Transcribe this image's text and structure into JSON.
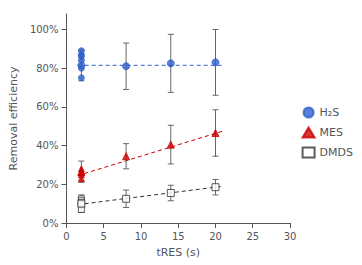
{
  "chart_data": {
    "type": "scatter",
    "xlabel": "tRES (s)",
    "ylabel": "Removal efficiency",
    "xlim": [
      0,
      30
    ],
    "xticks": [
      0,
      5,
      10,
      15,
      20,
      25,
      30
    ],
    "ylim": [
      0,
      1.08
    ],
    "yticks": [
      {
        "value": 0,
        "label": "0%"
      },
      {
        "value": 0.2,
        "label": "20%"
      },
      {
        "value": 0.4,
        "label": "40%"
      },
      {
        "value": 0.6,
        "label": "60%"
      },
      {
        "value": 0.8,
        "label": "80%"
      },
      {
        "value": 1.0,
        "label": "100%"
      }
    ],
    "grid": false,
    "legend": "right",
    "series": [
      {
        "name": "H₂S",
        "color": "#3060cc",
        "marker": "circle",
        "line_style": "dashed",
        "x": [
          2,
          8,
          14,
          20
        ],
        "values": [
          0.815,
          0.81,
          0.825,
          0.83
        ],
        "yerr": [
          0.08,
          0.12,
          0.15,
          0.17
        ],
        "scatter_x": [
          2,
          2,
          2,
          2,
          2,
          2
        ],
        "scatter_values": [
          0.89,
          0.87,
          0.86,
          0.84,
          0.8,
          0.75
        ],
        "trend_x": [
          1.5,
          21
        ],
        "trend_values": [
          0.815,
          0.815
        ]
      },
      {
        "name": "MES",
        "color": "#cc0000",
        "marker": "triangle",
        "line_style": "dashed",
        "x": [
          2,
          8,
          14,
          20
        ],
        "values": [
          0.265,
          0.345,
          0.405,
          0.465
        ],
        "yerr": [
          0.055,
          0.065,
          0.1,
          0.12
        ],
        "scatter_x": [
          2,
          2,
          2,
          2
        ],
        "scatter_values": [
          0.28,
          0.26,
          0.25,
          0.23
        ],
        "trend_x": [
          1.5,
          21
        ],
        "trend_values": [
          0.245,
          0.475
        ]
      },
      {
        "name": "DMDS",
        "color": "#333333",
        "marker": "open_square",
        "line_style": "dashed",
        "x": [
          2,
          8,
          14,
          20
        ],
        "values": [
          0.1,
          0.125,
          0.155,
          0.185
        ],
        "yerr": [
          0.045,
          0.045,
          0.04,
          0.04
        ],
        "scatter_x": [
          2,
          2,
          2,
          2,
          2
        ],
        "scatter_values": [
          0.125,
          0.115,
          0.105,
          0.095,
          0.07
        ],
        "trend_x": [
          1.5,
          21
        ],
        "trend_values": [
          0.095,
          0.19
        ]
      }
    ]
  }
}
